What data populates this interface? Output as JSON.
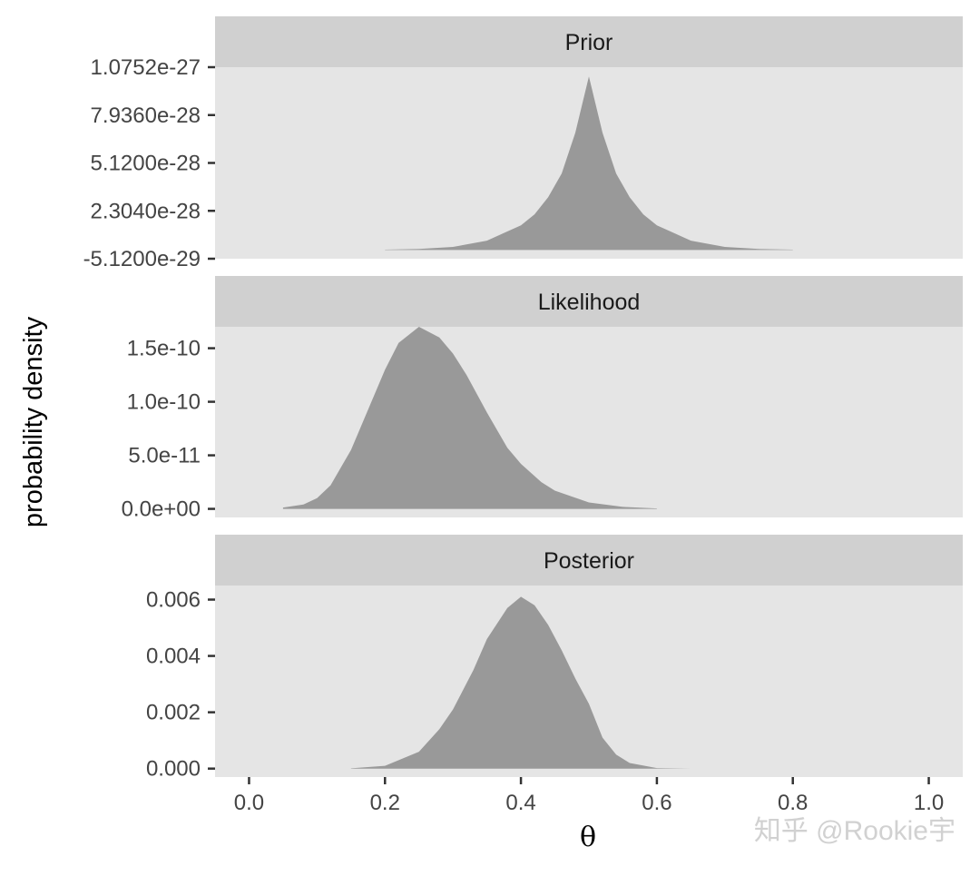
{
  "chart_data": {
    "type": "area",
    "xlabel": "θ",
    "ylabel": "probability density",
    "xlim": [
      -0.05,
      1.05
    ],
    "x_ticks": [
      0.0,
      0.2,
      0.4,
      0.6,
      0.8,
      1.0
    ],
    "x_tick_labels": [
      "0.0",
      "0.2",
      "0.4",
      "0.6",
      "0.8",
      "1.0"
    ],
    "grid": false,
    "panels": [
      {
        "strip": "Prior",
        "ylim": [
          -5.12e-29,
          1.0752e-27
        ],
        "y_ticks": [
          -5.12e-29,
          2.304e-28,
          5.12e-28,
          7.936e-28,
          1.0752e-27
        ],
        "y_tick_labels": [
          "-5.1200e-29",
          "2.3040e-28",
          "5.1200e-28",
          "7.9360e-28",
          "1.0752e-27"
        ],
        "x": [
          0.2,
          0.25,
          0.3,
          0.35,
          0.4,
          0.42,
          0.44,
          0.46,
          0.48,
          0.5,
          0.52,
          0.54,
          0.56,
          0.58,
          0.6,
          0.65,
          0.7,
          0.75,
          0.8
        ],
        "y": [
          2e-30,
          6e-30,
          1.8e-29,
          5.5e-29,
          1.45e-28,
          2.1e-28,
          3.1e-28,
          4.5e-28,
          6.9e-28,
          1.02e-27,
          6.9e-28,
          4.5e-28,
          3.1e-28,
          2.1e-28,
          1.45e-28,
          5.5e-29,
          1.8e-29,
          6e-30,
          2e-30
        ]
      },
      {
        "strip": "Likelihood",
        "ylim": [
          -8e-12,
          1.7e-10
        ],
        "y_ticks": [
          0,
          5e-11,
          1e-10,
          1.5e-10
        ],
        "y_tick_labels": [
          "0.0e+00",
          "5.0e-11",
          "1.0e-10",
          "1.5e-10"
        ],
        "x": [
          0.05,
          0.08,
          0.1,
          0.12,
          0.15,
          0.18,
          0.2,
          0.22,
          0.25,
          0.28,
          0.3,
          0.32,
          0.35,
          0.38,
          0.4,
          0.43,
          0.45,
          0.5,
          0.55,
          0.6
        ],
        "y": [
          1.2e-12,
          4e-12,
          1e-11,
          2.2e-11,
          5.5e-11,
          1e-10,
          1.3e-10,
          1.55e-10,
          1.7e-10,
          1.6e-10,
          1.45e-10,
          1.25e-10,
          9e-11,
          5.7e-11,
          4.2e-11,
          2.5e-11,
          1.7e-11,
          6e-12,
          1.8e-12,
          4e-13
        ]
      },
      {
        "strip": "Posterior",
        "ylim": [
          -0.0003,
          0.0065
        ],
        "y_ticks": [
          0,
          0.002,
          0.004,
          0.006
        ],
        "y_tick_labels": [
          "0.000",
          "0.002",
          "0.004",
          "0.006"
        ],
        "x": [
          0.15,
          0.2,
          0.25,
          0.28,
          0.3,
          0.33,
          0.35,
          0.38,
          0.4,
          0.42,
          0.44,
          0.46,
          0.48,
          0.5,
          0.52,
          0.54,
          0.56,
          0.6,
          0.65
        ],
        "y": [
          1e-05,
          0.0001,
          0.0006,
          0.0014,
          0.0021,
          0.0035,
          0.0046,
          0.0057,
          0.0061,
          0.0058,
          0.0051,
          0.0042,
          0.0032,
          0.0023,
          0.0011,
          0.0005,
          0.0002,
          2e-05,
          0.0
        ]
      }
    ]
  },
  "watermark": "知乎 @Rookie宇",
  "colors": {
    "panel_bg": "#e5e5e5",
    "strip_bg": "#d0d0d0",
    "fill": "#999999",
    "tick_text": "#444444"
  }
}
